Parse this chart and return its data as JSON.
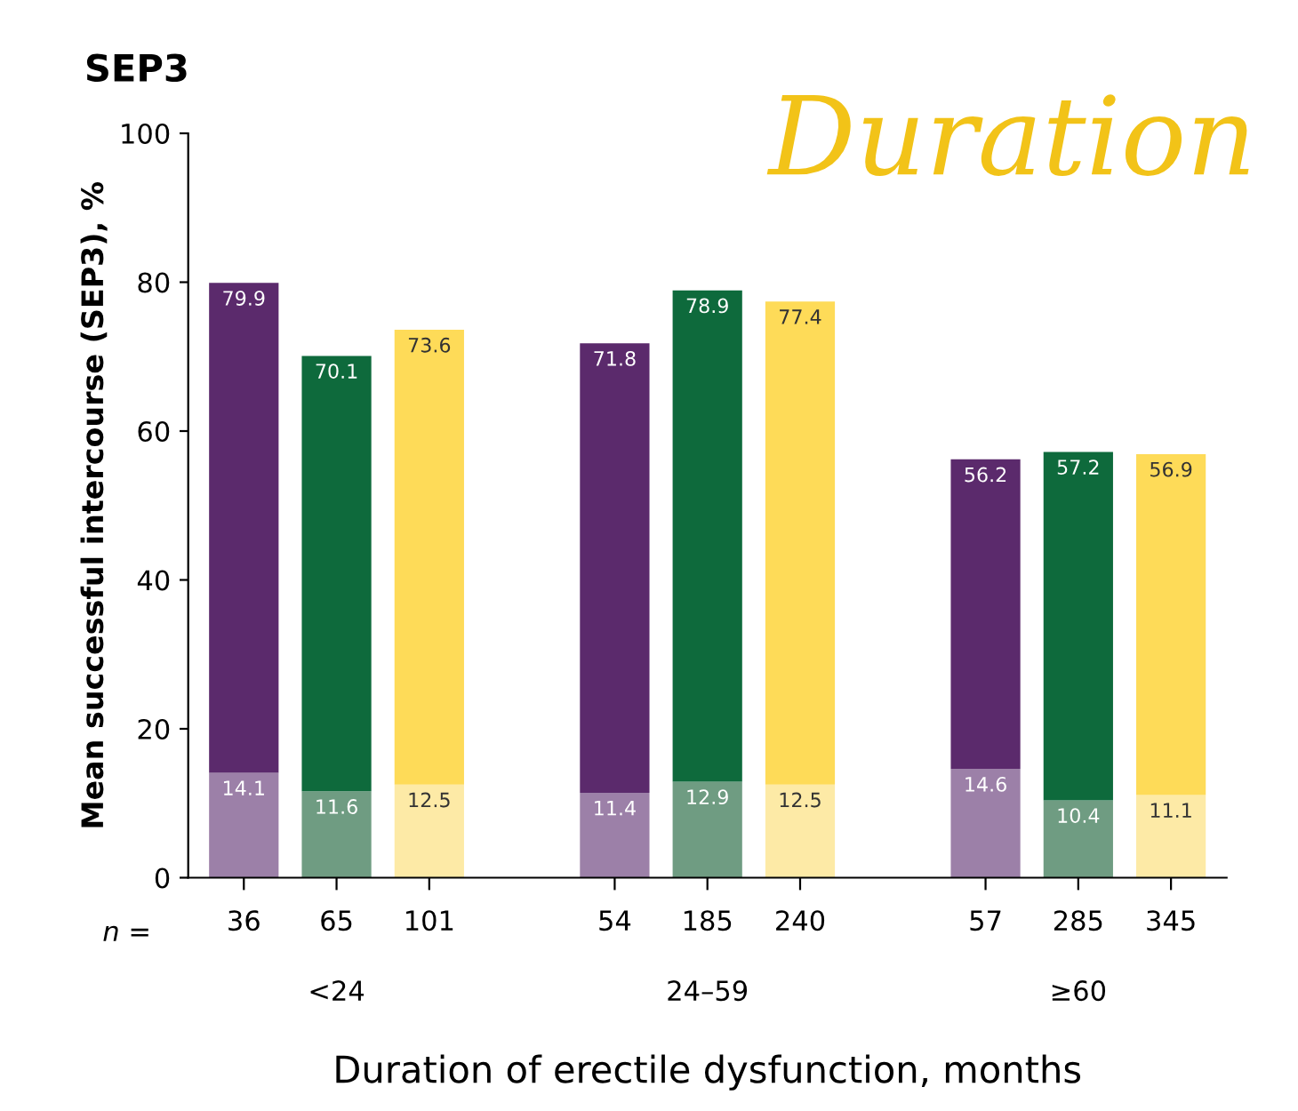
{
  "chart_data": {
    "type": "bar",
    "title": "SEP3",
    "ylabel": "Mean successful intercourse (SEP3), %",
    "xlabel": "Duration of erectile dysfunction, months",
    "categories": [
      "36",
      "65",
      "101",
      null,
      "54",
      "185",
      "240",
      null,
      "57",
      "285",
      "345"
    ],
    "stacked": true,
    "series": [
      {
        "colors": [
          "#9c80a8",
          "#6f9c82",
          "#fdeaa6",
          null,
          "#9c80a8",
          "#6f9c82",
          "#fdeaa6",
          null,
          "#9c80a8",
          "#6f9c82",
          "#fdeaa6"
        ],
        "values": [
          14.1,
          11.6,
          12.5,
          null,
          11.4,
          12.9,
          12.5,
          null,
          14.6,
          10.4,
          11.1
        ],
        "value_labels": [
          "14.1",
          "11.6",
          "12.5",
          null,
          "11.4",
          "12.9",
          "12.5",
          null,
          "14.6",
          "10.4",
          "11.1"
        ]
      },
      {
        "colors": [
          "#5b2a6c",
          "#0e6a3c",
          "#fedb58",
          null,
          "#5b2a6c",
          "#0e6a3c",
          "#fedb58",
          null,
          "#5b2a6c",
          "#0e6a3c",
          "#fedb58"
        ],
        "values": [
          65.8,
          58.5,
          61.1,
          null,
          60.4,
          66.0,
          64.9,
          null,
          41.6,
          46.8,
          45.8
        ]
      }
    ],
    "totals": [
      "79.9",
      "70.1",
      "73.6",
      null,
      "71.8",
      "78.9",
      "77.4",
      null,
      "56.2",
      "57.2",
      "56.9"
    ],
    "ylim": [
      0,
      100
    ],
    "yticks": [
      0,
      20,
      40,
      60,
      80,
      100
    ],
    "grid": false,
    "legend": false,
    "annotations": [
      "n =",
      "<24",
      "24–59",
      "≥60",
      "Duration"
    ]
  }
}
